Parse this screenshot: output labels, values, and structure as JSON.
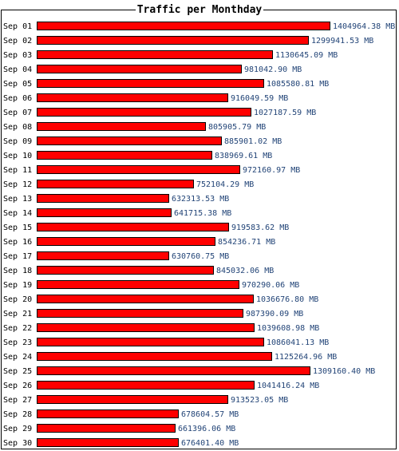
{
  "chart_data": {
    "type": "bar",
    "orientation": "horizontal",
    "title": "Traffic per Monthday",
    "categories": [
      "Sep 01",
      "Sep 02",
      "Sep 03",
      "Sep 04",
      "Sep 05",
      "Sep 06",
      "Sep 07",
      "Sep 08",
      "Sep 09",
      "Sep 10",
      "Sep 11",
      "Sep 12",
      "Sep 13",
      "Sep 14",
      "Sep 15",
      "Sep 16",
      "Sep 17",
      "Sep 18",
      "Sep 19",
      "Sep 20",
      "Sep 21",
      "Sep 22",
      "Sep 23",
      "Sep 24",
      "Sep 25",
      "Sep 26",
      "Sep 27",
      "Sep 28",
      "Sep 29",
      "Sep 30"
    ],
    "values": [
      1404964.38,
      1299941.53,
      1130645.09,
      981042.9,
      1085580.81,
      916049.59,
      1027187.59,
      805905.79,
      885901.02,
      838969.61,
      972160.97,
      752104.29,
      632313.53,
      641715.38,
      919583.62,
      854236.71,
      630760.75,
      845032.06,
      970290.06,
      1036676.8,
      987390.09,
      1039608.98,
      1086041.13,
      1125264.96,
      1309160.4,
      1041416.24,
      913523.05,
      678604.57,
      661396.06,
      676401.4
    ],
    "value_labels": [
      "1404964.38 MB",
      "1299941.53 MB",
      "1130645.09 MB",
      "981042.90 MB",
      "1085580.81 MB",
      "916049.59 MB",
      "1027187.59 MB",
      "805905.79 MB",
      "885901.02 MB",
      "838969.61 MB",
      "972160.97 MB",
      "752104.29 MB",
      "632313.53 MB",
      "641715.38 MB",
      "919583.62 MB",
      "854236.71 MB",
      "630760.75 MB",
      "845032.06 MB",
      "970290.06 MB",
      "1036676.80 MB",
      "987390.09 MB",
      "1039608.98 MB",
      "1086041.13 MB",
      "1125264.96 MB",
      "1309160.40 MB",
      "1041416.24 MB",
      "913523.05 MB",
      "678604.57 MB",
      "661396.06 MB",
      "676401.40 MB"
    ],
    "unit": "MB",
    "bar_color": "#ff0000",
    "bar_border_color": "#000000",
    "label_color": "#224477"
  }
}
